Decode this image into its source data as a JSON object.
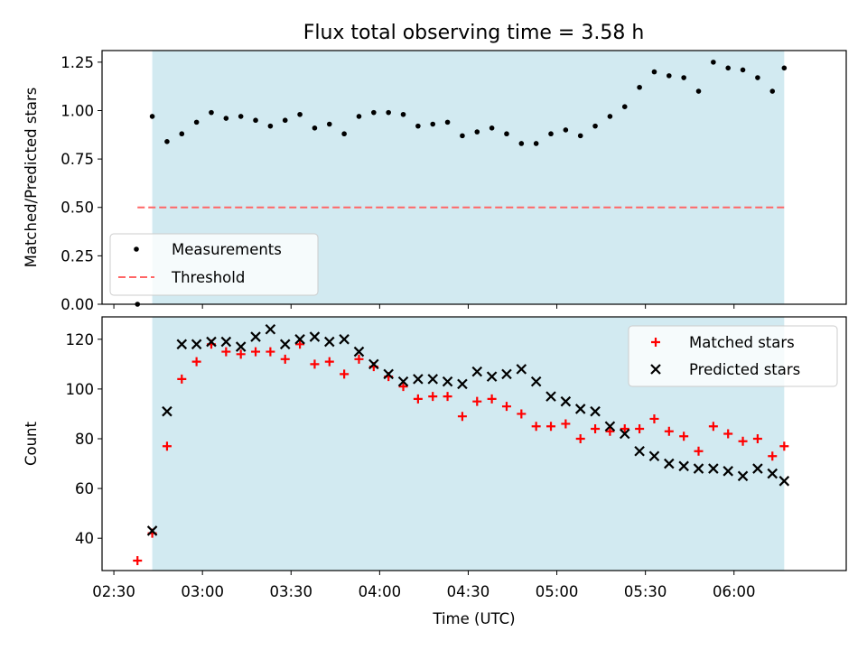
{
  "title": "Flux total observing time = 3.58 h",
  "colors": {
    "shade": "#add8e6",
    "threshold": "#ff6666",
    "matched": "#ff0000",
    "predicted": "#000000",
    "measurement": "#000000"
  },
  "chart_data": [
    {
      "type": "scatter",
      "ylabel": "Matched/Predicted stars",
      "xlabel": "",
      "ylim": [
        0,
        1.31
      ],
      "xlim_minutes_utc": [
        146,
        398
      ],
      "yticks": [
        "0.00",
        "0.25",
        "0.50",
        "0.75",
        "1.00",
        "1.25"
      ],
      "grid": false,
      "legend_position": "lower-left",
      "shaded_interval_utc": [
        "02:43",
        "06:17"
      ],
      "threshold": {
        "name": "Threshold",
        "value": 0.5,
        "x_start": "02:38",
        "x_end": "06:17",
        "style": "dashed"
      },
      "series": [
        {
          "name": "Measurements",
          "marker": "dot",
          "x": [
            "02:38",
            "02:43",
            "02:48",
            "02:53",
            "02:58",
            "03:03",
            "03:08",
            "03:13",
            "03:18",
            "03:23",
            "03:28",
            "03:33",
            "03:38",
            "03:43",
            "03:48",
            "03:53",
            "03:58",
            "04:03",
            "04:08",
            "04:13",
            "04:18",
            "04:23",
            "04:28",
            "04:33",
            "04:38",
            "04:43",
            "04:48",
            "04:53",
            "04:58",
            "05:03",
            "05:08",
            "05:13",
            "05:18",
            "05:23",
            "05:28",
            "05:33",
            "05:38",
            "05:43",
            "05:48",
            "05:53",
            "05:58",
            "06:03",
            "06:08",
            "06:13",
            "06:17"
          ],
          "y": [
            0.0,
            0.97,
            0.84,
            0.88,
            0.94,
            0.99,
            0.96,
            0.97,
            0.95,
            0.92,
            0.95,
            0.98,
            0.91,
            0.93,
            0.88,
            0.97,
            0.99,
            0.99,
            0.98,
            0.92,
            0.93,
            0.94,
            0.87,
            0.89,
            0.91,
            0.88,
            0.83,
            0.83,
            0.88,
            0.9,
            0.87,
            0.92,
            0.97,
            1.02,
            1.12,
            1.2,
            1.18,
            1.17,
            1.1,
            1.25,
            1.22,
            1.21,
            1.17,
            1.1,
            1.22
          ]
        }
      ]
    },
    {
      "type": "scatter",
      "ylabel": "Count",
      "xlabel": "Time (UTC)",
      "ylim": [
        27,
        129
      ],
      "xlim_minutes_utc": [
        146,
        398
      ],
      "yticks": [
        "40",
        "60",
        "80",
        "100",
        "120"
      ],
      "xticks": [
        "02:30",
        "03:00",
        "03:30",
        "04:00",
        "04:30",
        "05:00",
        "05:30",
        "06:00"
      ],
      "grid": false,
      "legend_position": "upper-right",
      "shaded_interval_utc": [
        "02:43",
        "06:17"
      ],
      "series": [
        {
          "name": "Matched stars",
          "marker": "plus",
          "x": [
            "02:38",
            "02:43",
            "02:48",
            "02:53",
            "02:58",
            "03:03",
            "03:08",
            "03:13",
            "03:18",
            "03:23",
            "03:28",
            "03:33",
            "03:38",
            "03:43",
            "03:48",
            "03:53",
            "03:58",
            "04:03",
            "04:08",
            "04:13",
            "04:18",
            "04:23",
            "04:28",
            "04:33",
            "04:38",
            "04:43",
            "04:48",
            "04:53",
            "04:58",
            "05:03",
            "05:08",
            "05:13",
            "05:18",
            "05:23",
            "05:28",
            "05:33",
            "05:38",
            "05:43",
            "05:48",
            "05:53",
            "05:58",
            "06:03",
            "06:08",
            "06:13",
            "06:17"
          ],
          "y": [
            31,
            42,
            77,
            104,
            111,
            118,
            115,
            114,
            115,
            115,
            112,
            118,
            110,
            111,
            106,
            112,
            109,
            105,
            101,
            96,
            97,
            97,
            89,
            95,
            96,
            93,
            90,
            85,
            85,
            86,
            80,
            84,
            83,
            84,
            84,
            88,
            83,
            81,
            75,
            85,
            82,
            79,
            80,
            73,
            77
          ]
        },
        {
          "name": "Predicted stars",
          "marker": "x",
          "x": [
            "02:43",
            "02:48",
            "02:53",
            "02:58",
            "03:03",
            "03:08",
            "03:13",
            "03:18",
            "03:23",
            "03:28",
            "03:33",
            "03:38",
            "03:43",
            "03:48",
            "03:53",
            "03:58",
            "04:03",
            "04:08",
            "04:13",
            "04:18",
            "04:23",
            "04:28",
            "04:33",
            "04:38",
            "04:43",
            "04:48",
            "04:53",
            "04:58",
            "05:03",
            "05:08",
            "05:13",
            "05:18",
            "05:23",
            "05:28",
            "05:33",
            "05:38",
            "05:43",
            "05:48",
            "05:53",
            "05:58",
            "06:03",
            "06:08",
            "06:13",
            "06:17"
          ],
          "y": [
            43,
            91,
            118,
            118,
            119,
            119,
            117,
            121,
            124,
            118,
            120,
            121,
            119,
            120,
            115,
            110,
            106,
            103,
            104,
            104,
            103,
            102,
            107,
            105,
            106,
            108,
            103,
            97,
            95,
            92,
            91,
            85,
            82,
            75,
            73,
            70,
            69,
            68,
            68,
            67,
            65,
            68,
            66,
            63
          ]
        }
      ]
    }
  ]
}
